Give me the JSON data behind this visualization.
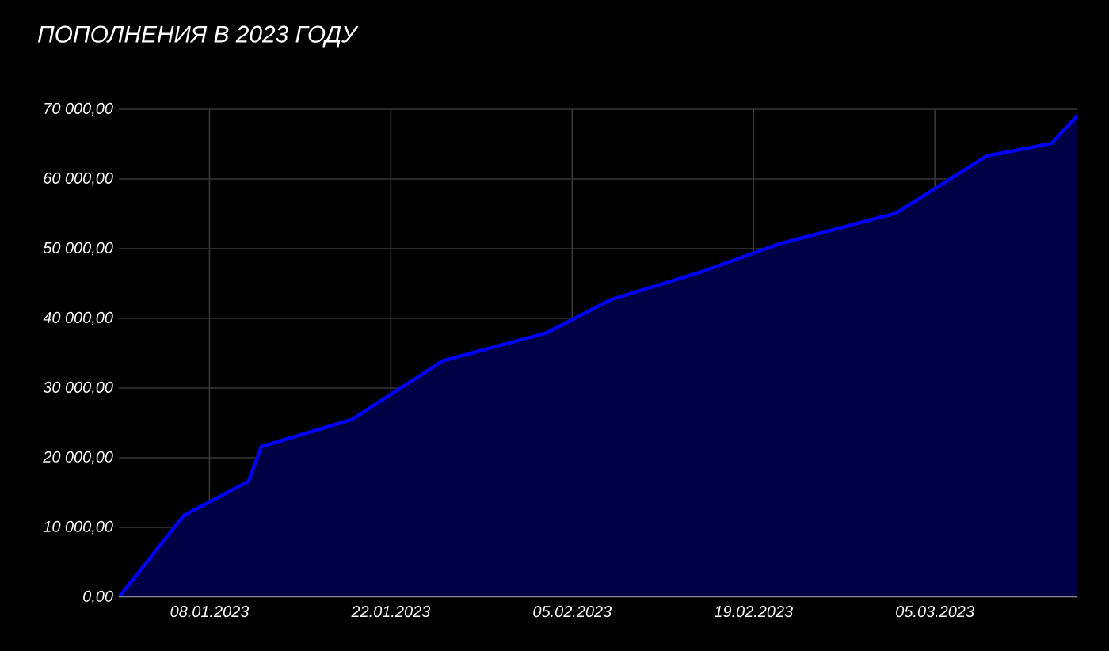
{
  "chart_data": {
    "type": "area",
    "title": "ПОПОЛНЕНИЯ В 2023 ГОДУ",
    "x": [
      "2023-01-01",
      "2023-01-06",
      "2023-01-11",
      "2023-01-12",
      "2023-01-19",
      "2023-01-26",
      "2023-02-03",
      "2023-02-08",
      "2023-02-15",
      "2023-02-21",
      "2023-03-02",
      "2023-03-09",
      "2023-03-14",
      "2023-03-16"
    ],
    "series": [
      {
        "color": "#0000ff",
        "values": [
          0,
          11700,
          16600,
          21600,
          25500,
          33900,
          37900,
          42700,
          46700,
          50700,
          55100,
          63300,
          65100,
          69100
        ]
      }
    ],
    "xlim": [
      "2023-01-01",
      "2023-03-16"
    ],
    "xticks": [
      {
        "value": "2023-01-08",
        "label": "08.01.2023"
      },
      {
        "value": "2023-01-22",
        "label": "22.01.2023"
      },
      {
        "value": "2023-02-05",
        "label": "05.02.2023"
      },
      {
        "value": "2023-02-19",
        "label": "19.02.2023"
      },
      {
        "value": "2023-03-05",
        "label": "05.03.2023"
      }
    ],
    "ylim": [
      0,
      70000
    ],
    "yticks": [
      {
        "value": 0,
        "label": "0,00"
      },
      {
        "value": 10000,
        "label": "10 000,00"
      },
      {
        "value": 20000,
        "label": "20 000,00"
      },
      {
        "value": 30000,
        "label": "30 000,00"
      },
      {
        "value": 40000,
        "label": "40 000,00"
      },
      {
        "value": 50000,
        "label": "50 000,00"
      },
      {
        "value": 60000,
        "label": "60 000,00"
      },
      {
        "value": 70000,
        "label": "70 000,00"
      }
    ],
    "grid": true,
    "marker": "none",
    "line_style": "solid"
  }
}
